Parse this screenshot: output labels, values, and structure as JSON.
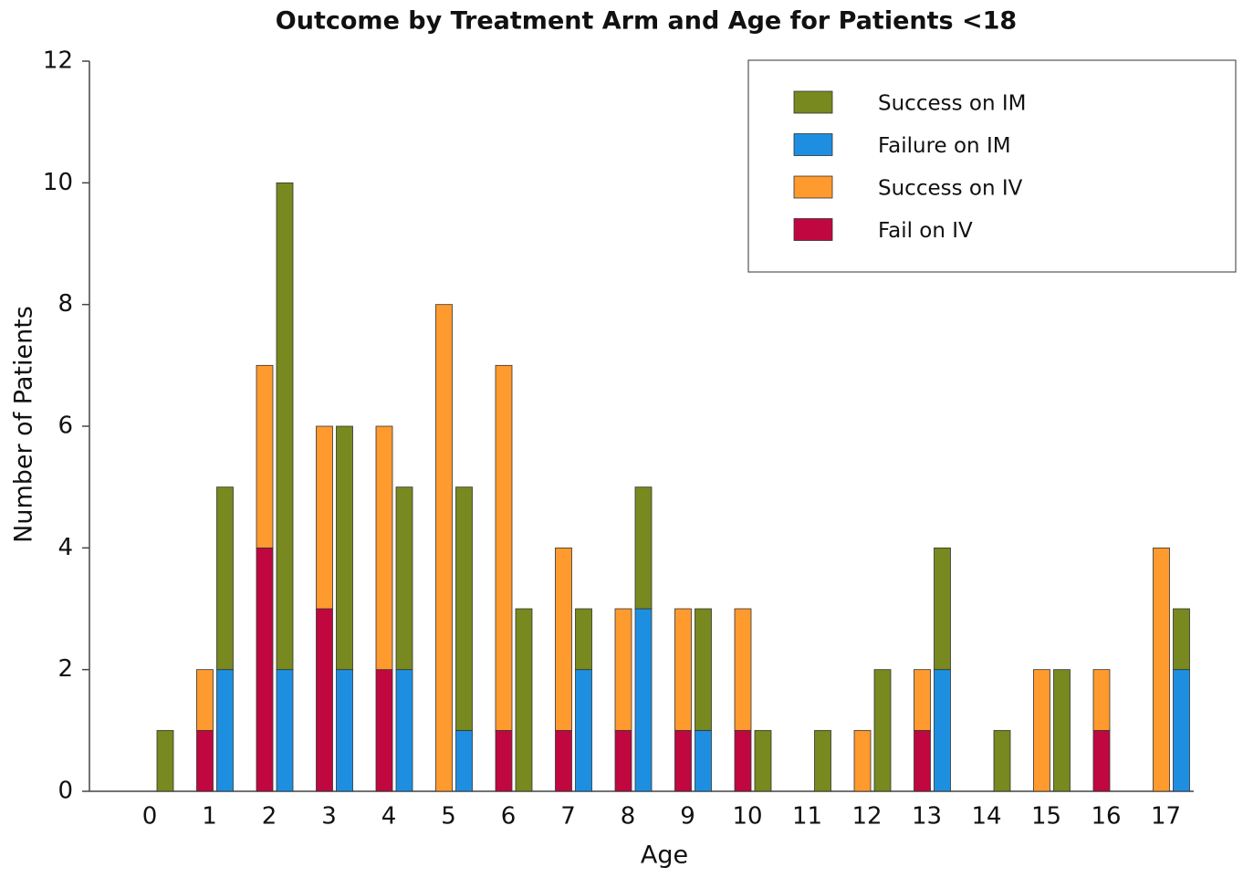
{
  "chart_data": {
    "type": "bar",
    "title": "Outcome by Treatment Arm and Age for Patients <18",
    "x_label": "Age",
    "y_label": "Number of Patients",
    "categories": [
      "0",
      "1",
      "2",
      "3",
      "4",
      "5",
      "6",
      "7",
      "8",
      "9",
      "10",
      "11",
      "12",
      "13",
      "14",
      "15",
      "16",
      "17"
    ],
    "series": [
      {
        "name": "Success on IM",
        "color": "#77891f",
        "values": [
          1,
          3,
          8,
          4,
          3,
          4,
          3,
          1,
          2,
          2,
          1,
          1,
          2,
          2,
          1,
          2,
          0,
          1
        ]
      },
      {
        "name": "Failure on IM",
        "color": "#1e8fe0",
        "values": [
          0,
          2,
          2,
          2,
          2,
          1,
          0,
          2,
          3,
          1,
          0,
          0,
          0,
          2,
          0,
          0,
          0,
          2
        ]
      },
      {
        "name": "Success on IV",
        "color": "#ff9a2e",
        "values": [
          0,
          1,
          3,
          3,
          4,
          8,
          6,
          3,
          2,
          2,
          2,
          0,
          1,
          1,
          0,
          2,
          1,
          4
        ]
      },
      {
        "name": "Fail on IV",
        "color": "#c0073f",
        "values": [
          0,
          1,
          4,
          3,
          2,
          0,
          1,
          1,
          1,
          1,
          1,
          0,
          0,
          1,
          0,
          0,
          1,
          0
        ]
      }
    ],
    "ylim": [
      0,
      12
    ],
    "yticks": [
      0,
      2,
      4,
      6,
      8,
      10,
      12
    ],
    "grid": false,
    "legend": "top-right"
  }
}
